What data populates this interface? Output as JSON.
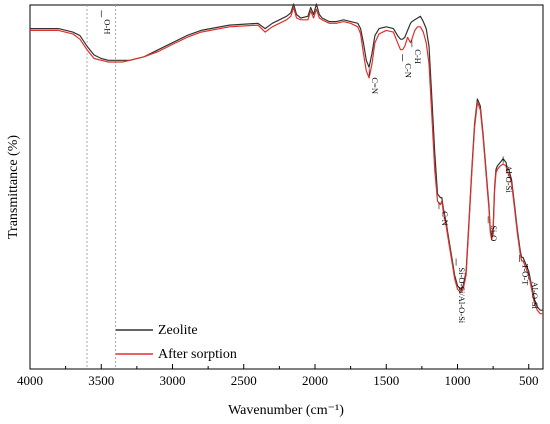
{
  "chart_data": {
    "type": "line",
    "xlabel": "Wavenumber (cm⁻¹)",
    "ylabel": "Transmittance (%)",
    "xlim": [
      4000,
      400
    ],
    "x_reversed": true,
    "ylim": [
      0,
      100
    ],
    "y_ticks_shown": false,
    "x_ticks": [
      "4000",
      "3500",
      "3000",
      "2500",
      "2000",
      "1500",
      "1000",
      "500"
    ],
    "grid": false,
    "legend": {
      "placement": "bottom-left"
    },
    "reference_lines": [
      {
        "x": 3600,
        "style": "dotted"
      },
      {
        "x": 3400,
        "style": "dotted"
      }
    ],
    "annotations": [
      {
        "text": "O-H",
        "x": 3500,
        "y": 98.5
      },
      {
        "text": "C=N",
        "x": 1620,
        "y": 82
      },
      {
        "text": "C-N",
        "x": 1385,
        "y": 86
      },
      {
        "text": "C-H",
        "x": 1320,
        "y": 90
      },
      {
        "text": "C-N",
        "x": 1130,
        "y": 44
      },
      {
        "text": "Si-O-Si/Al-O-Si",
        "x": 1010,
        "y": 28
      },
      {
        "text": "Si-O",
        "x": 785,
        "y": 40
      },
      {
        "text": "Al-O-Si",
        "x": 680,
        "y": 57
      },
      {
        "text": "T-O-T",
        "x": 565,
        "y": 29
      },
      {
        "text": "Al-O-Si",
        "x": 500,
        "y": 24
      }
    ],
    "series": [
      {
        "name": "Zeolite",
        "color": "#333333",
        "x": [
          4000,
          3900,
          3800,
          3700,
          3650,
          3600,
          3550,
          3500,
          3450,
          3400,
          3350,
          3300,
          3200,
          3100,
          3000,
          2900,
          2800,
          2600,
          2400,
          2350,
          2300,
          2200,
          2170,
          2150,
          2130,
          2100,
          2050,
          2030,
          2010,
          1990,
          1970,
          1950,
          1900,
          1850,
          1800,
          1750,
          1700,
          1680,
          1660,
          1640,
          1620,
          1600,
          1580,
          1550,
          1500,
          1450,
          1420,
          1400,
          1385,
          1370,
          1350,
          1330,
          1320,
          1300,
          1280,
          1260,
          1240,
          1220,
          1200,
          1180,
          1160,
          1140,
          1120,
          1110,
          1100,
          1080,
          1060,
          1040,
          1020,
          1000,
          980,
          960,
          940,
          920,
          900,
          880,
          860,
          840,
          820,
          800,
          790,
          780,
          770,
          760,
          750,
          740,
          730,
          720,
          700,
          680,
          660,
          650,
          640,
          620,
          600,
          580,
          560,
          550,
          540,
          520,
          500,
          480,
          460,
          440,
          420,
          400
        ],
        "y": [
          95,
          95,
          95,
          94,
          93,
          90,
          87.5,
          86.5,
          86,
          86,
          86,
          86,
          87,
          89,
          91,
          93,
          94.5,
          96,
          96.5,
          95,
          96.5,
          98.5,
          99.5,
          102,
          99,
          98,
          98.5,
          101,
          99,
          102,
          99,
          98,
          97,
          97,
          97.5,
          97,
          96.5,
          95,
          91,
          86,
          84,
          88,
          93,
          95,
          95.5,
          95,
          93,
          92,
          92,
          92.5,
          94.5,
          96.5,
          97,
          97.5,
          98,
          98.5,
          97,
          95,
          90,
          75,
          60,
          48,
          47,
          47,
          44,
          40,
          35,
          30,
          25,
          22,
          21,
          22,
          26,
          40,
          55,
          68,
          75,
          73,
          65,
          55,
          50,
          45,
          38,
          36,
          38,
          50,
          55,
          56,
          57,
          58,
          57,
          55,
          55,
          52,
          45,
          38,
          32,
          30,
          30,
          28,
          26,
          22,
          18,
          16,
          15,
          15
        ]
      },
      {
        "name": "After sorption",
        "color": "#e0302b",
        "x": [
          4000,
          3900,
          3800,
          3700,
          3650,
          3600,
          3550,
          3500,
          3450,
          3400,
          3350,
          3300,
          3200,
          3100,
          3000,
          2900,
          2800,
          2600,
          2400,
          2350,
          2300,
          2200,
          2170,
          2150,
          2130,
          2100,
          2050,
          2030,
          2010,
          1990,
          1970,
          1950,
          1900,
          1850,
          1800,
          1750,
          1700,
          1680,
          1660,
          1640,
          1620,
          1600,
          1580,
          1550,
          1500,
          1450,
          1420,
          1400,
          1385,
          1370,
          1350,
          1330,
          1320,
          1300,
          1280,
          1260,
          1240,
          1220,
          1200,
          1180,
          1160,
          1140,
          1120,
          1110,
          1100,
          1080,
          1060,
          1040,
          1020,
          1000,
          980,
          960,
          940,
          920,
          900,
          880,
          860,
          840,
          820,
          800,
          790,
          780,
          770,
          760,
          750,
          740,
          730,
          720,
          700,
          680,
          660,
          650,
          640,
          620,
          600,
          580,
          560,
          550,
          540,
          520,
          500,
          480,
          460,
          440,
          420,
          400
        ],
        "y": [
          94.5,
          94.5,
          94.5,
          93.5,
          92,
          89,
          86.5,
          86,
          85.5,
          85.5,
          85.5,
          86,
          87,
          88.5,
          90.5,
          92.5,
          94,
          95.5,
          96,
          94,
          95.5,
          97.5,
          98.5,
          101,
          98,
          97.5,
          97.5,
          100,
          98,
          100.5,
          98,
          97.5,
          96.5,
          96.5,
          97,
          96.5,
          95.5,
          93.5,
          88,
          83,
          81,
          85,
          91,
          93.5,
          94.5,
          94,
          91,
          89,
          89,
          90,
          92.5,
          91,
          92,
          94.5,
          95.5,
          95.5,
          94,
          91,
          85,
          70,
          55,
          46,
          45,
          46,
          43,
          39,
          34,
          29,
          24,
          21,
          20,
          21,
          25,
          39,
          54,
          67,
          74,
          72,
          64,
          54,
          49,
          44,
          37,
          35,
          37,
          49,
          54,
          55,
          56,
          56.5,
          56,
          54,
          54,
          51,
          44,
          37,
          31,
          29,
          29,
          27,
          25,
          21,
          17,
          15,
          14,
          14
        ]
      }
    ]
  }
}
